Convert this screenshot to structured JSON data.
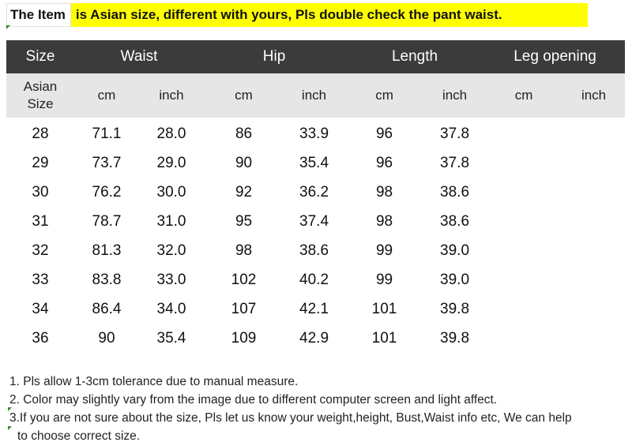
{
  "banner": {
    "label": "The Item",
    "message": "is Asian size, different with yours, Pls double check the pant waist."
  },
  "table": {
    "headers": [
      "Size",
      "Waist",
      "Hip",
      "Length",
      "Leg opening"
    ],
    "subheaders": [
      "Asian Size",
      "cm",
      "inch",
      "cm",
      "inch",
      "cm",
      "inch",
      "cm",
      "inch"
    ],
    "rows": [
      [
        "28",
        "71.1",
        "28.0",
        "86",
        "33.9",
        "96",
        "37.8",
        "",
        ""
      ],
      [
        "29",
        "73.7",
        "29.0",
        "90",
        "35.4",
        "96",
        "37.8",
        "",
        ""
      ],
      [
        "30",
        "76.2",
        "30.0",
        "92",
        "36.2",
        "98",
        "38.6",
        "",
        ""
      ],
      [
        "31",
        "78.7",
        "31.0",
        "95",
        "37.4",
        "98",
        "38.6",
        "",
        ""
      ],
      [
        "32",
        "81.3",
        "32.0",
        "98",
        "38.6",
        "99",
        "39.0",
        "",
        ""
      ],
      [
        "33",
        "83.8",
        "33.0",
        "102",
        "40.2",
        "99",
        "39.0",
        "",
        ""
      ],
      [
        "34",
        "86.4",
        "34.0",
        "107",
        "42.1",
        "101",
        "39.8",
        "",
        ""
      ],
      [
        "36",
        "90",
        "35.4",
        "109",
        "42.9",
        "101",
        "39.8",
        "",
        ""
      ]
    ]
  },
  "notes": [
    "1. Pls allow 1-3cm tolerance due to manual measure.",
    "2. Color may slightly vary from the image due to different computer screen and light affect.",
    "3.If you are not sure about the size, Pls let us know your weight,height, Bust,Waist info etc, We can help",
    "to choose correct size."
  ],
  "colors": {
    "header_bg": "#3b3b3b",
    "subheader_bg": "#e6e6e6",
    "banner_highlight": "#ffff00",
    "tick": "#2e8b2e"
  }
}
